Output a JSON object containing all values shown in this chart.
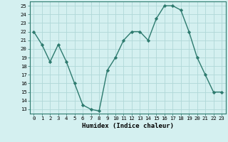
{
  "x": [
    0,
    1,
    2,
    3,
    4,
    5,
    6,
    7,
    8,
    9,
    10,
    11,
    12,
    13,
    14,
    15,
    16,
    17,
    18,
    19,
    20,
    21,
    22,
    23
  ],
  "y": [
    22,
    20.5,
    18.5,
    20.5,
    18.5,
    16,
    13.5,
    13,
    12.8,
    17.5,
    19,
    21,
    22,
    22,
    21,
    23.5,
    25,
    25,
    24.5,
    22,
    19,
    17,
    15,
    15
  ],
  "line_color": "#2d7a6e",
  "marker": "D",
  "marker_size": 2.2,
  "bg_color": "#d4f0f0",
  "grid_color": "#b0d8d8",
  "xlabel": "Humidex (Indice chaleur)",
  "xlabel_fontsize": 6.5,
  "ylim": [
    12.5,
    25.5
  ],
  "xlim": [
    -0.5,
    23.5
  ],
  "yticks": [
    13,
    14,
    15,
    16,
    17,
    18,
    19,
    20,
    21,
    22,
    23,
    24,
    25
  ],
  "xticks": [
    0,
    1,
    2,
    3,
    4,
    5,
    6,
    7,
    8,
    9,
    10,
    11,
    12,
    13,
    14,
    15,
    16,
    17,
    18,
    19,
    20,
    21,
    22,
    23
  ],
  "tick_fontsize": 5.2,
  "linewidth": 1.0
}
